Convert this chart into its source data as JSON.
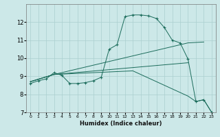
{
  "xlabel": "Humidex (Indice chaleur)",
  "xlim": [
    -0.5,
    23.5
  ],
  "ylim": [
    7,
    13
  ],
  "yticks": [
    7,
    8,
    9,
    10,
    11,
    12
  ],
  "xticks": [
    0,
    1,
    2,
    3,
    4,
    5,
    6,
    7,
    8,
    9,
    10,
    11,
    12,
    13,
    14,
    15,
    16,
    17,
    18,
    19,
    20,
    21,
    22,
    23
  ],
  "bg_color": "#cce8e8",
  "grid_color": "#aacfcf",
  "line_color": "#1a6b5a",
  "line1": {
    "x": [
      0,
      1,
      2,
      3,
      4,
      5,
      6,
      7,
      8,
      9,
      10,
      11,
      12,
      13,
      14,
      15,
      16,
      17,
      18,
      19,
      20,
      21,
      22,
      23
    ],
    "y": [
      8.6,
      8.75,
      8.85,
      9.2,
      9.05,
      8.6,
      8.6,
      8.65,
      8.75,
      8.95,
      10.5,
      10.75,
      12.3,
      12.4,
      12.4,
      12.35,
      12.2,
      11.7,
      11.0,
      10.85,
      9.95,
      7.6,
      7.7,
      7.0
    ]
  },
  "line2": {
    "x": [
      0,
      3,
      20,
      22
    ],
    "y": [
      8.7,
      9.1,
      10.85,
      10.9
    ]
  },
  "line3": {
    "x": [
      0,
      3,
      20
    ],
    "y": [
      8.7,
      9.1,
      9.75
    ]
  },
  "line4": {
    "x": [
      0,
      3,
      13,
      20,
      21,
      22,
      23
    ],
    "y": [
      8.7,
      9.1,
      9.3,
      7.9,
      7.6,
      7.7,
      7.0
    ]
  }
}
